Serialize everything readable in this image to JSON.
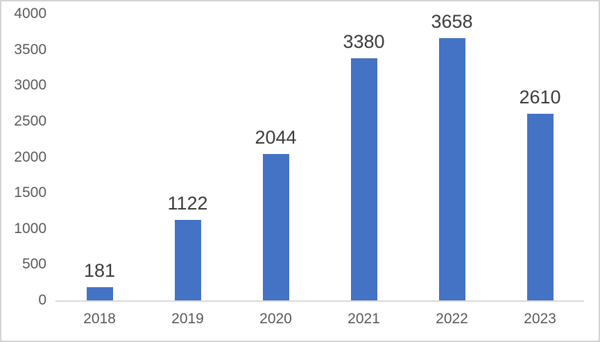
{
  "chart_data": {
    "type": "bar",
    "title": "",
    "xlabel": "",
    "ylabel": "",
    "categories": [
      "2018",
      "2019",
      "2020",
      "2021",
      "2022",
      "2023"
    ],
    "values": [
      181,
      1122,
      2044,
      3380,
      3658,
      2610
    ],
    "data_labels": [
      "181",
      "1122",
      "2044",
      "3380",
      "3658",
      "2610"
    ],
    "yticks": [
      0,
      500,
      1000,
      1500,
      2000,
      2500,
      3000,
      3500,
      4000
    ],
    "ylim": [
      0,
      4000
    ],
    "grid": false,
    "legend": false,
    "data_labels_visible": true,
    "colors": {
      "bar": "#4472C4",
      "axis_labels": "#595959",
      "data_labels": "#3b3b3b",
      "axis_line": "#d9d9d9",
      "border": "#d3d3d3",
      "background": "#ffffff"
    }
  }
}
